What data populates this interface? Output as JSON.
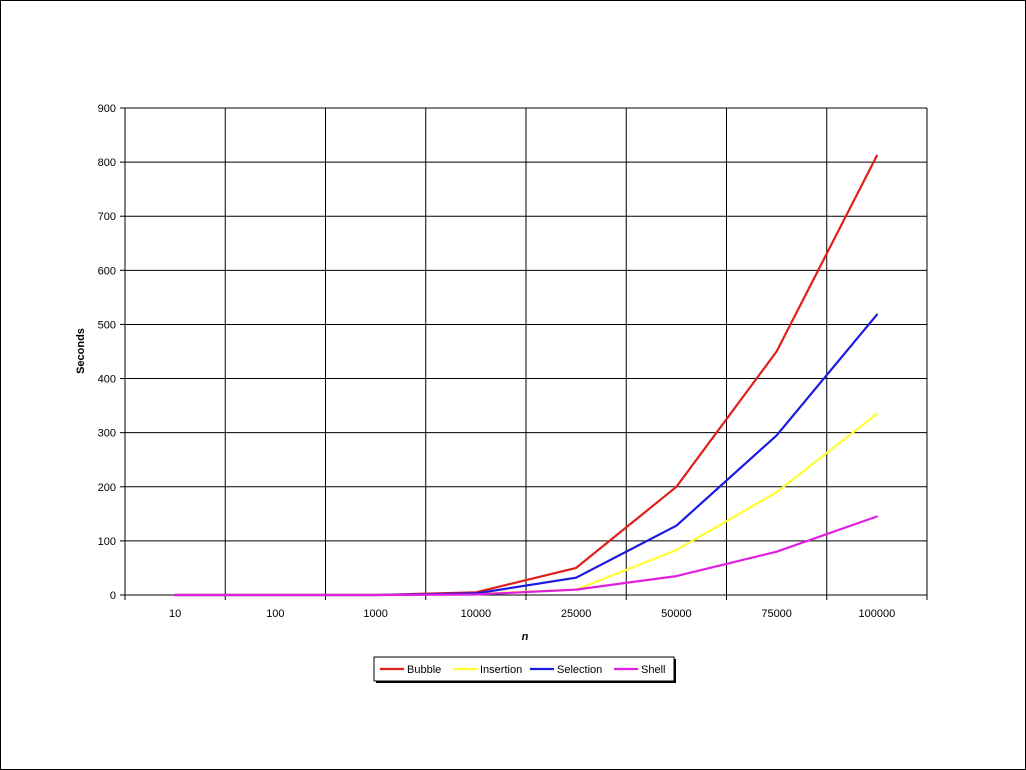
{
  "chart_data": {
    "type": "line",
    "title": "",
    "xlabel": "n",
    "ylabel": "Seconds",
    "categories": [
      "10",
      "100",
      "1000",
      "10000",
      "25000",
      "50000",
      "75000",
      "100000"
    ],
    "ylim": [
      0,
      900
    ],
    "yticks": [
      "0",
      "100",
      "200",
      "300",
      "400",
      "500",
      "600",
      "700",
      "800",
      "900"
    ],
    "grid": true,
    "legend_position": "bottom",
    "series": [
      {
        "name": "Bubble",
        "color": "#e0201a",
        "values": [
          0,
          0,
          0,
          5,
          50,
          200,
          450,
          812
        ]
      },
      {
        "name": "Insertion",
        "color": "#ffff33",
        "values": [
          0,
          0,
          0,
          2,
          10,
          83,
          190,
          335
        ]
      },
      {
        "name": "Selection",
        "color": "#1a1ae0",
        "values": [
          0,
          0,
          0,
          3,
          32,
          128,
          295,
          518
        ]
      },
      {
        "name": "Shell",
        "color": "#e020e0",
        "values": [
          0,
          0,
          0,
          1,
          10,
          35,
          80,
          145
        ]
      }
    ]
  }
}
